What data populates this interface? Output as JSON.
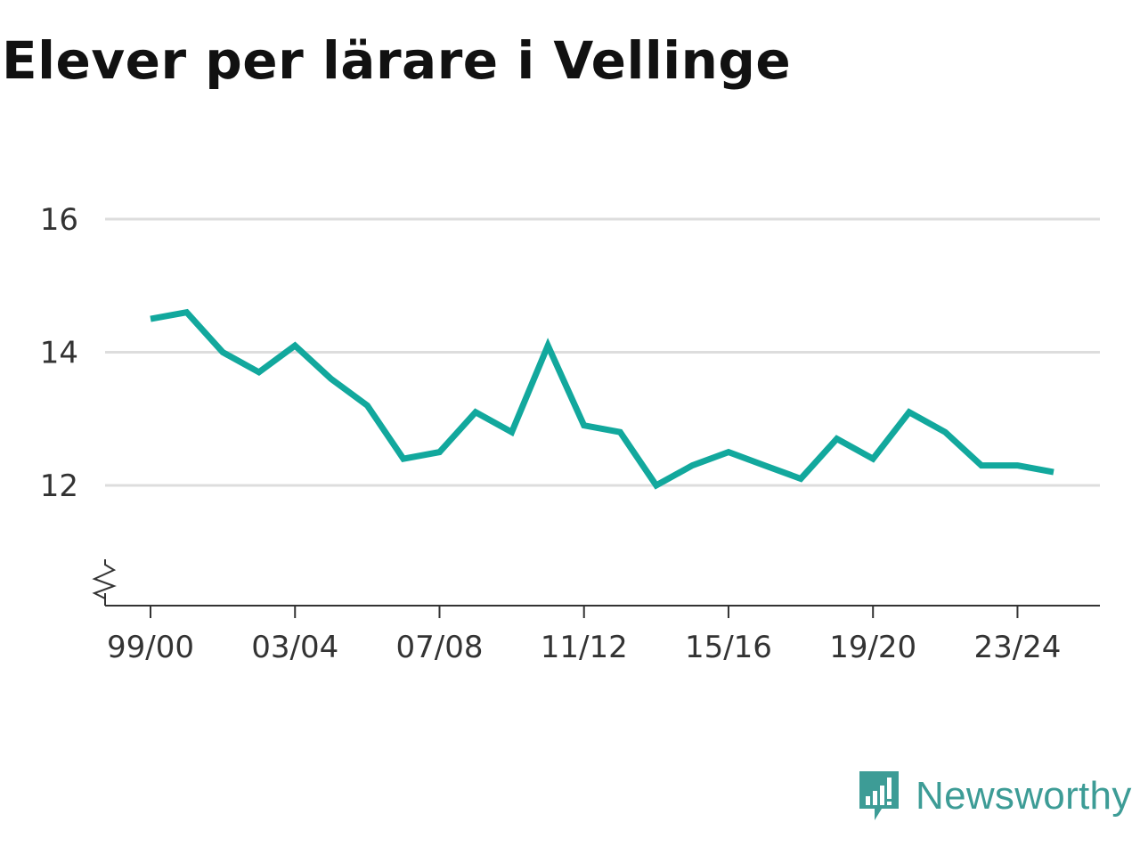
{
  "title": "Elever per lärare i Vellinge",
  "brand": {
    "name": "Newsworthy",
    "icon": "newsworthy-logo-icon"
  },
  "colors": {
    "line": "#12a89d",
    "grid": "#dddddd",
    "axis": "#333333",
    "brand": "#3d9c96"
  },
  "chart_data": {
    "type": "line",
    "title": "Elever per lärare i Vellinge",
    "xlabel": "",
    "ylabel": "",
    "x": [
      "99/00",
      "00/01",
      "01/02",
      "02/03",
      "03/04",
      "04/05",
      "05/06",
      "06/07",
      "07/08",
      "08/09",
      "09/10",
      "10/11",
      "11/12",
      "12/13",
      "13/14",
      "14/15",
      "15/16",
      "16/17",
      "17/18",
      "18/19",
      "19/20",
      "20/21",
      "21/22",
      "22/23",
      "23/24",
      "24/25"
    ],
    "x_tick_labels": [
      "99/00",
      "03/04",
      "07/08",
      "11/12",
      "15/16",
      "19/20",
      "23/24"
    ],
    "y_tick_labels": [
      "12",
      "14",
      "16"
    ],
    "y_ticks": [
      12,
      14,
      16
    ],
    "ylim": [
      10.2,
      16
    ],
    "axis_break": true,
    "grid": true,
    "series": [
      {
        "values": [
          14.5,
          14.6,
          14.0,
          13.7,
          14.1,
          13.6,
          13.2,
          12.4,
          12.5,
          13.1,
          12.8,
          14.1,
          12.9,
          12.8,
          12.0,
          12.3,
          12.5,
          12.3,
          12.1,
          12.7,
          12.4,
          13.1,
          12.8,
          12.3,
          12.3,
          12.2
        ]
      }
    ]
  }
}
